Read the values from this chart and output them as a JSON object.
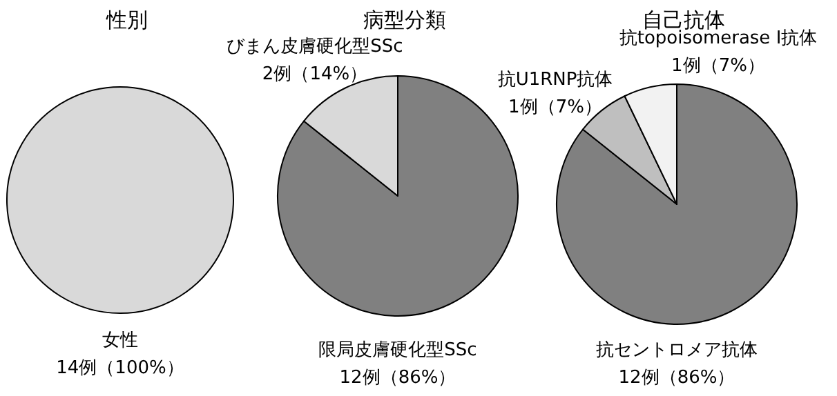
{
  "chart_data": [
    {
      "type": "pie",
      "title": "性別",
      "categories": [
        "女性"
      ],
      "values": [
        14
      ],
      "value_labels": [
        "14例（100%）"
      ],
      "colors": [
        "#d9d9d9"
      ]
    },
    {
      "type": "pie",
      "title": "病型分類",
      "categories": [
        "限局皮膚硬化型SSc",
        "びまん皮膚硬化型SSc"
      ],
      "values": [
        12,
        2
      ],
      "value_labels": [
        "12例（86%）",
        "2例（14%）"
      ],
      "colors": [
        "#808080",
        "#d9d9d9"
      ]
    },
    {
      "type": "pie",
      "title": "自己抗体",
      "categories": [
        "抗セントロメア抗体",
        "抗U1RNP抗体",
        "抗topoisomerase I抗体"
      ],
      "values": [
        12,
        1,
        1
      ],
      "value_labels": [
        "12例（86%）",
        "1例（7%）",
        "1例（7%）"
      ],
      "colors": [
        "#808080",
        "#bfbfbf",
        "#f2f2f2"
      ]
    }
  ]
}
